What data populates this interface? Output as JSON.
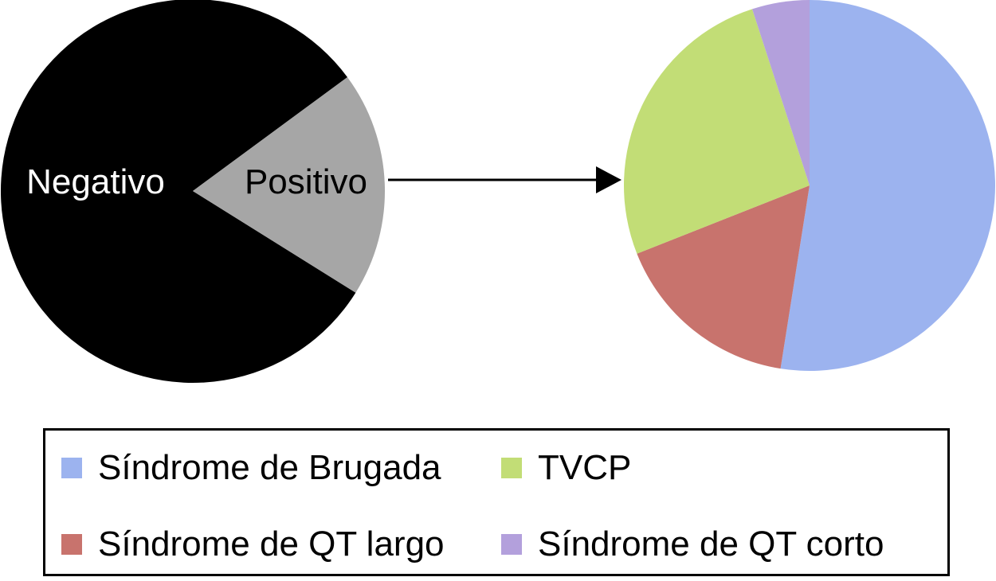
{
  "chart_data": [
    {
      "type": "pie",
      "slices": [
        {
          "label": "Negativo",
          "value": 81,
          "color": "#000000",
          "label_color": "#ffffff"
        },
        {
          "label": "Positivo",
          "value": 19,
          "color": "#a6a6a6",
          "label_color": "#000000"
        }
      ]
    },
    {
      "type": "pie",
      "slices": [
        {
          "label": "Síndrome de Brugada",
          "value": 52.5,
          "color": "#9cb3ef"
        },
        {
          "label": "Síndrome de QT largo",
          "value": 16.5,
          "color": "#c8736d"
        },
        {
          "label": "TVCP",
          "value": 26,
          "color": "#c2dd76"
        },
        {
          "label": "Síndrome de QT corto",
          "value": 5,
          "color": "#b3a0dc"
        }
      ]
    }
  ],
  "legend": {
    "items": [
      {
        "label": "Síndrome de Brugada",
        "color": "#9cb3ef"
      },
      {
        "label": "TVCP",
        "color": "#c2dd76"
      },
      {
        "label": "Síndrome de QT largo",
        "color": "#c8736d"
      },
      {
        "label": "Síndrome de QT corto",
        "color": "#b3a0dc"
      }
    ]
  }
}
